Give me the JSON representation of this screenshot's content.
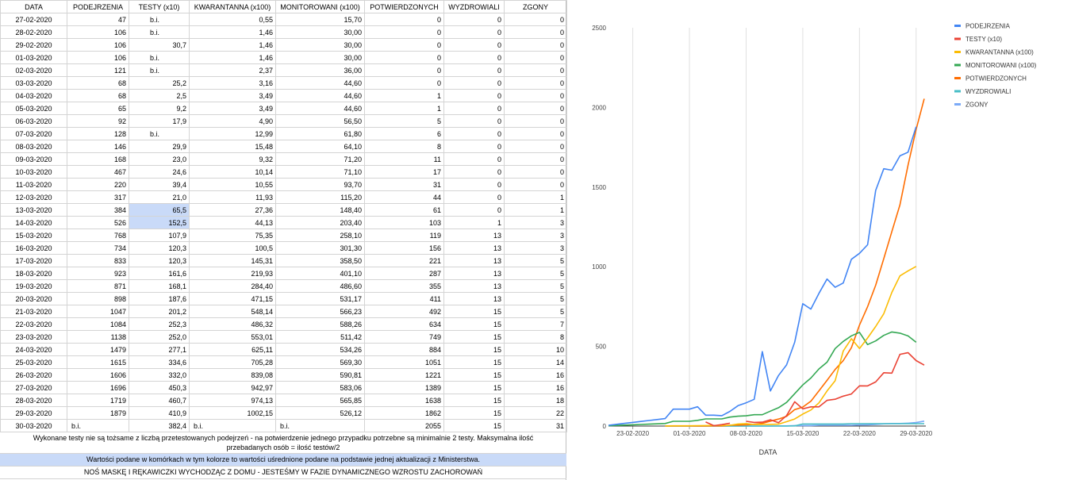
{
  "sheet": {
    "headers": [
      "DATA",
      "PODEJRZENIA",
      "TESTY (x10)",
      "KWARANTANNA (x100)",
      "MONITOROWANI (x100)",
      "POTWIERDZONYCH",
      "WYZDROWIALI",
      "ZGONY"
    ],
    "rows": [
      [
        "27-02-2020",
        "47",
        "b.i.",
        "0,55",
        "15,70",
        "0",
        "0",
        "0"
      ],
      [
        "28-02-2020",
        "106",
        "b.i.",
        "1,46",
        "30,00",
        "0",
        "0",
        "0"
      ],
      [
        "29-02-2020",
        "106",
        "30,7",
        "1,46",
        "30,00",
        "0",
        "0",
        "0"
      ],
      [
        "01-03-2020",
        "106",
        "b.i.",
        "1,46",
        "30,00",
        "0",
        "0",
        "0"
      ],
      [
        "02-03-2020",
        "121",
        "b.i.",
        "2,37",
        "36,00",
        "0",
        "0",
        "0"
      ],
      [
        "03-03-2020",
        "68",
        "25,2",
        "3,16",
        "44,60",
        "0",
        "0",
        "0"
      ],
      [
        "04-03-2020",
        "68",
        "2,5",
        "3,49",
        "44,60",
        "1",
        "0",
        "0"
      ],
      [
        "05-03-2020",
        "65",
        "9,2",
        "3,49",
        "44,60",
        "1",
        "0",
        "0"
      ],
      [
        "06-03-2020",
        "92",
        "17,9",
        "4,90",
        "56,50",
        "5",
        "0",
        "0"
      ],
      [
        "07-03-2020",
        "128",
        "b.i.",
        "12,99",
        "61,80",
        "6",
        "0",
        "0"
      ],
      [
        "08-03-2020",
        "146",
        "29,9",
        "15,48",
        "64,10",
        "8",
        "0",
        "0"
      ],
      [
        "09-03-2020",
        "168",
        "23,0",
        "9,32",
        "71,20",
        "11",
        "0",
        "0"
      ],
      [
        "10-03-2020",
        "467",
        "24,6",
        "10,14",
        "71,10",
        "17",
        "0",
        "0"
      ],
      [
        "11-03-2020",
        "220",
        "39,4",
        "10,55",
        "93,70",
        "31",
        "0",
        "0"
      ],
      [
        "12-03-2020",
        "317",
        "21,0",
        "11,93",
        "115,20",
        "44",
        "0",
        "1"
      ],
      [
        "13-03-2020",
        "384",
        "65,5",
        "27,36",
        "148,40",
        "61",
        "0",
        "1"
      ],
      [
        "14-03-2020",
        "526",
        "152,5",
        "44,13",
        "203,40",
        "103",
        "1",
        "3"
      ],
      [
        "15-03-2020",
        "768",
        "107,9",
        "75,35",
        "258,10",
        "119",
        "13",
        "3"
      ],
      [
        "16-03-2020",
        "734",
        "120,3",
        "100,5",
        "301,30",
        "156",
        "13",
        "3"
      ],
      [
        "17-03-2020",
        "833",
        "120,3",
        "145,31",
        "358,50",
        "221",
        "13",
        "5"
      ],
      [
        "18-03-2020",
        "923",
        "161,6",
        "219,93",
        "401,10",
        "287",
        "13",
        "5"
      ],
      [
        "19-03-2020",
        "871",
        "168,1",
        "284,40",
        "486,60",
        "355",
        "13",
        "5"
      ],
      [
        "20-03-2020",
        "898",
        "187,6",
        "471,15",
        "531,17",
        "411",
        "13",
        "5"
      ],
      [
        "21-03-2020",
        "1047",
        "201,2",
        "548,14",
        "566,23",
        "492",
        "15",
        "5"
      ],
      [
        "22-03-2020",
        "1084",
        "252,3",
        "486,32",
        "588,26",
        "634",
        "15",
        "7"
      ],
      [
        "23-03-2020",
        "1138",
        "252,0",
        "553,01",
        "511,42",
        "749",
        "15",
        "8"
      ],
      [
        "24-03-2020",
        "1479",
        "277,1",
        "625,11",
        "534,26",
        "884",
        "15",
        "10"
      ],
      [
        "25-03-2020",
        "1615",
        "334,6",
        "705,28",
        "569,30",
        "1051",
        "15",
        "14"
      ],
      [
        "26-03-2020",
        "1606",
        "332,0",
        "839,08",
        "590,81",
        "1221",
        "15",
        "16"
      ],
      [
        "27-03-2020",
        "1696",
        "450,3",
        "942,97",
        "583,06",
        "1389",
        "15",
        "16"
      ],
      [
        "28-03-2020",
        "1719",
        "460,7",
        "974,13",
        "565,85",
        "1638",
        "15",
        "18"
      ],
      [
        "29-03-2020",
        "1879",
        "410,9",
        "1002,15",
        "526,12",
        "1862",
        "15",
        "22"
      ],
      [
        "30-03-2020",
        "b.i.",
        "382,4",
        "b.i.",
        "b.i.",
        "2055",
        "15",
        "31"
      ]
    ],
    "note_tests": "Wykonane testy nie są tożsame z liczbą przetestowanych podejrzeń - na potwierdzenie jednego przypadku potrzebne są minimalnie 2 testy. Maksymalna ilość przebadanych osób = ilość testów/2",
    "note_average": "Wartości podane w komórkach w tym kolorze to wartości uśrednione podane na podstawie jednej aktualizacji z Ministerstwa.",
    "note_mask": "NOŚ MASKĘ I RĘKAWICZKI WYCHODZĄC Z DOMU - JESTEŚMY W FAZIE DYNAMICZNEGO WZROSTU ZACHOROWAŃ"
  },
  "chart_data": {
    "type": "line",
    "xlabel": "DATA",
    "ylabel": "",
    "ylim": [
      0,
      2500
    ],
    "yticks": [
      0,
      500,
      1000,
      1500,
      2000,
      2500
    ],
    "xticks": [
      "23-02-2020",
      "01-03-2020",
      "08-03-2020",
      "15-03-2020",
      "22-03-2020",
      "29-03-2020"
    ],
    "grid": "vertical",
    "legend": "top-right",
    "x": [
      "20-02-2020",
      "21-02-2020",
      "22-02-2020",
      "23-02-2020",
      "24-02-2020",
      "25-02-2020",
      "26-02-2020",
      "27-02-2020",
      "28-02-2020",
      "29-02-2020",
      "01-03-2020",
      "02-03-2020",
      "03-03-2020",
      "04-03-2020",
      "05-03-2020",
      "06-03-2020",
      "07-03-2020",
      "08-03-2020",
      "09-03-2020",
      "10-03-2020",
      "11-03-2020",
      "12-03-2020",
      "13-03-2020",
      "14-03-2020",
      "15-03-2020",
      "16-03-2020",
      "17-03-2020",
      "18-03-2020",
      "19-03-2020",
      "20-03-2020",
      "21-03-2020",
      "22-03-2020",
      "23-03-2020",
      "24-03-2020",
      "25-03-2020",
      "26-03-2020",
      "27-03-2020",
      "28-03-2020",
      "29-03-2020",
      "30-03-2020"
    ],
    "series": [
      {
        "name": "PODEJRZENIA",
        "color": "#4285f4",
        "values": [
          5,
          11,
          17,
          23,
          29,
          35,
          41,
          47,
          106,
          106,
          106,
          121,
          68,
          68,
          65,
          92,
          128,
          146,
          168,
          467,
          220,
          317,
          384,
          526,
          768,
          734,
          833,
          923,
          871,
          898,
          1047,
          1084,
          1138,
          1479,
          1615,
          1606,
          1696,
          1719,
          1879,
          null
        ]
      },
      {
        "name": "TESTY (x10)",
        "color": "#ea4335",
        "values": [
          null,
          null,
          null,
          null,
          null,
          null,
          null,
          null,
          null,
          30.7,
          null,
          null,
          25.2,
          2.5,
          9.2,
          17.9,
          null,
          29.9,
          23.0,
          24.6,
          39.4,
          21.0,
          65.5,
          152.5,
          107.9,
          120.3,
          120.3,
          161.6,
          168.1,
          187.6,
          201.2,
          252.3,
          252.0,
          277.1,
          334.6,
          332.0,
          450.3,
          460.7,
          410.9,
          382.4
        ]
      },
      {
        "name": "KWARANTANNA (x100)",
        "color": "#fbbc04",
        "values": [
          null,
          null,
          null,
          null,
          null,
          null,
          null,
          0.55,
          1.46,
          1.46,
          1.46,
          2.37,
          3.16,
          3.49,
          3.49,
          4.9,
          12.99,
          15.48,
          9.32,
          10.14,
          10.55,
          11.93,
          27.36,
          44.13,
          75.35,
          100.5,
          145.31,
          219.93,
          284.4,
          471.15,
          548.14,
          486.32,
          553.01,
          625.11,
          705.28,
          839.08,
          942.97,
          974.13,
          1002.15,
          null
        ]
      },
      {
        "name": "MONITOROWANI (x100)",
        "color": "#34a853",
        "values": [
          2,
          4,
          6,
          8,
          10,
          12,
          14,
          15.7,
          30.0,
          30.0,
          30.0,
          36.0,
          44.6,
          44.6,
          44.6,
          56.5,
          61.8,
          64.1,
          71.2,
          71.1,
          93.7,
          115.2,
          148.4,
          203.4,
          258.1,
          301.3,
          358.5,
          401.1,
          486.6,
          531.17,
          566.23,
          588.26,
          511.42,
          534.26,
          569.3,
          590.81,
          583.06,
          565.85,
          526.12,
          null
        ]
      },
      {
        "name": "POTWIERDZONYCH",
        "color": "#ff6d01",
        "values": [
          null,
          null,
          null,
          null,
          null,
          null,
          null,
          0,
          0,
          0,
          0,
          0,
          0,
          1,
          1,
          5,
          6,
          8,
          11,
          17,
          31,
          44,
          61,
          103,
          119,
          156,
          221,
          287,
          355,
          411,
          492,
          634,
          749,
          884,
          1051,
          1221,
          1389,
          1638,
          1862,
          2055
        ]
      },
      {
        "name": "WYZDROWIALI",
        "color": "#46bdc6",
        "values": [
          null,
          null,
          null,
          null,
          null,
          null,
          null,
          0,
          0,
          0,
          0,
          0,
          0,
          0,
          0,
          0,
          0,
          0,
          0,
          0,
          0,
          0,
          0,
          1,
          13,
          13,
          13,
          13,
          13,
          13,
          15,
          15,
          15,
          15,
          15,
          15,
          15,
          15,
          15,
          15
        ]
      },
      {
        "name": "ZGONY",
        "color": "#7baaf7",
        "values": [
          null,
          null,
          null,
          null,
          null,
          null,
          null,
          0,
          0,
          0,
          0,
          0,
          0,
          0,
          0,
          0,
          0,
          0,
          0,
          0,
          0,
          1,
          1,
          3,
          3,
          3,
          5,
          5,
          5,
          5,
          5,
          7,
          8,
          10,
          14,
          16,
          16,
          18,
          22,
          31
        ]
      }
    ]
  }
}
